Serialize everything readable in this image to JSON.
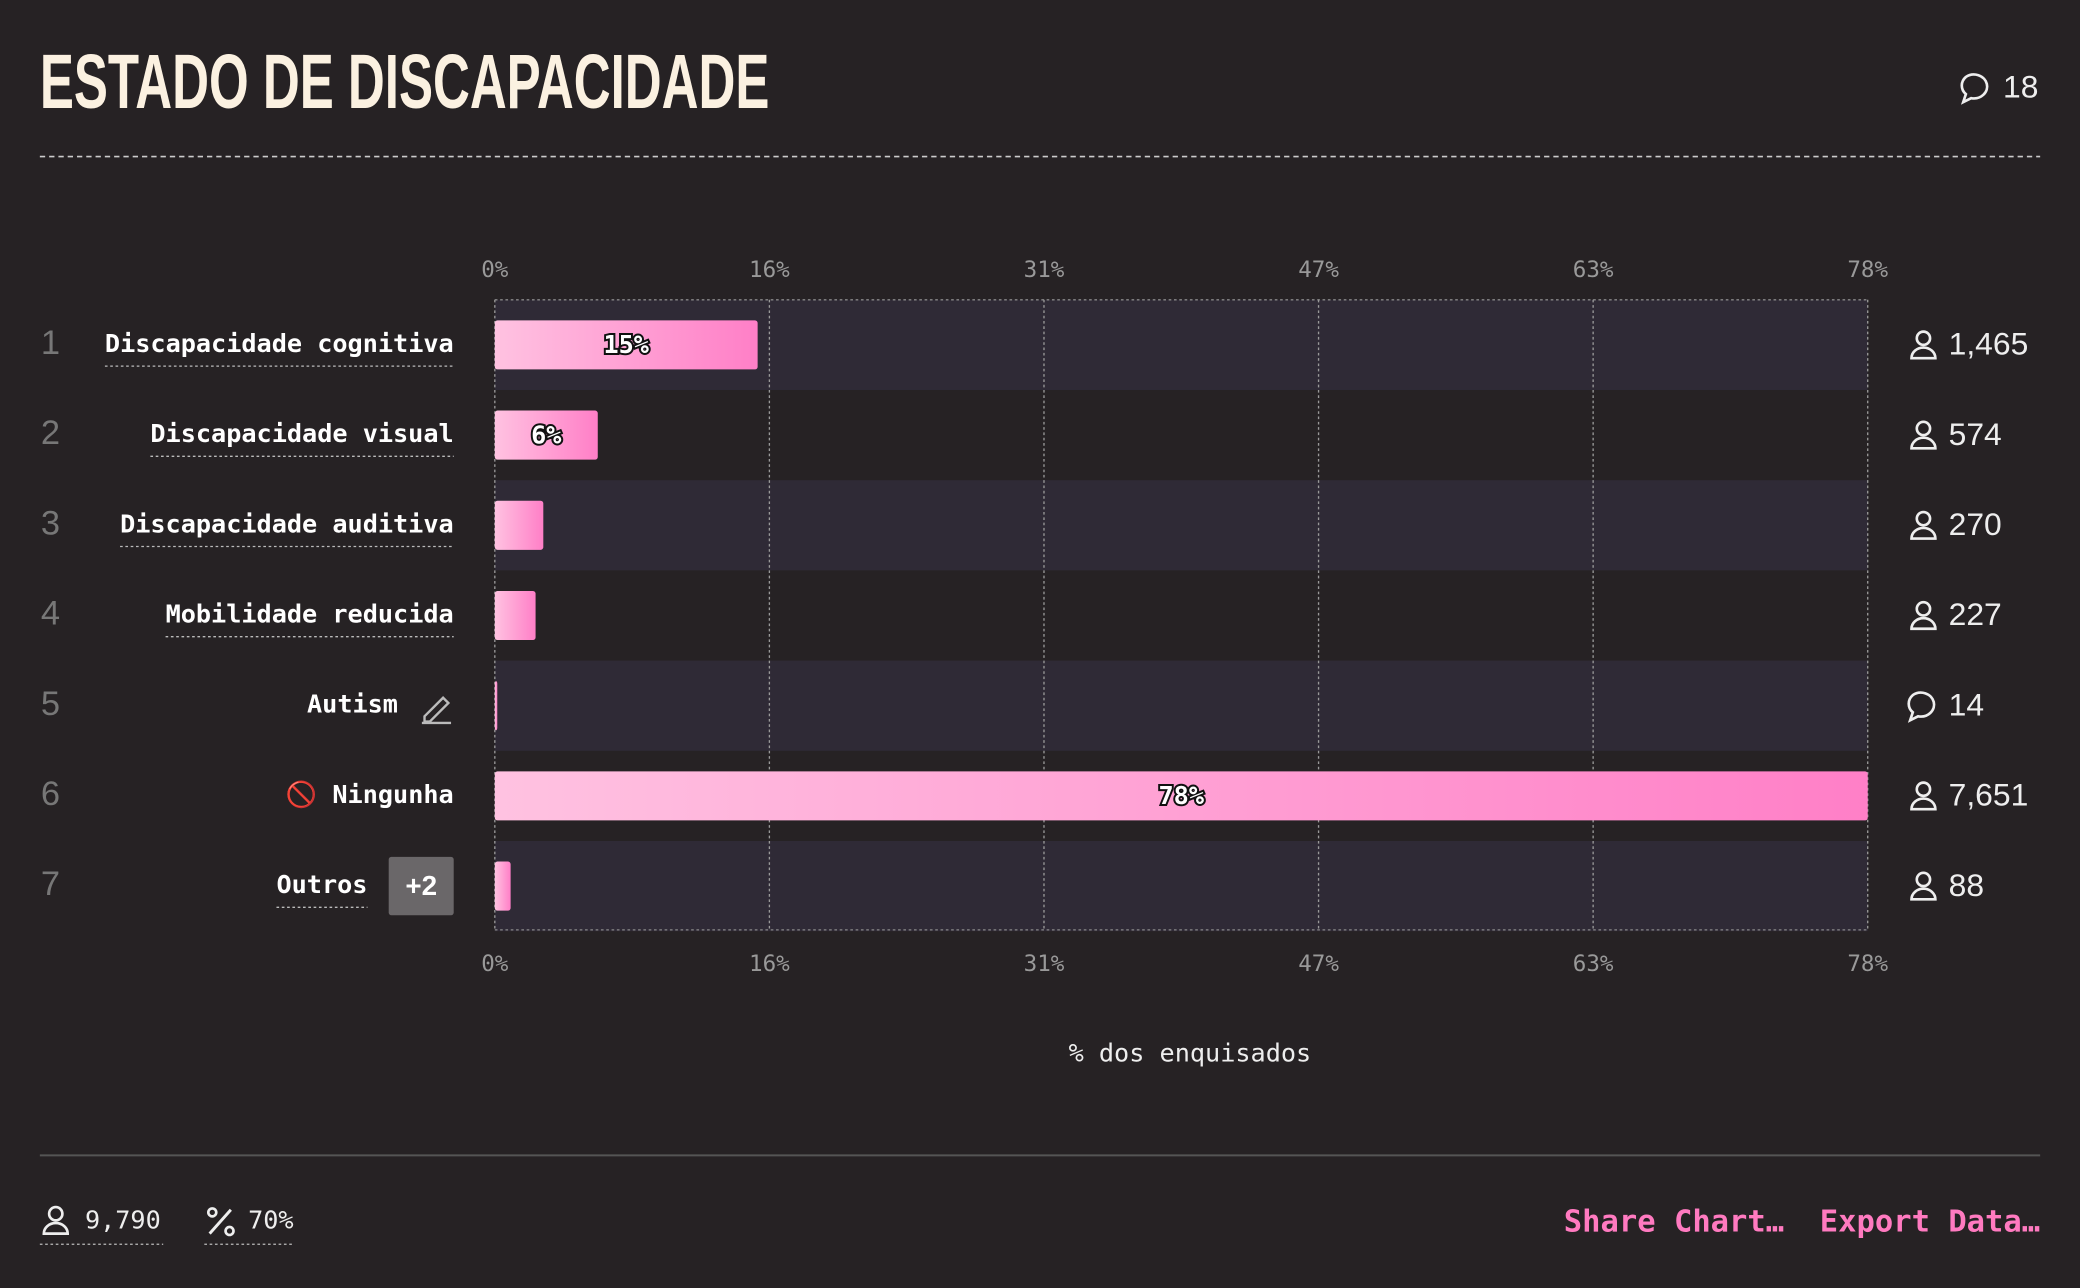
{
  "chart_data": {
    "type": "bar",
    "orientation": "horizontal",
    "title": "ESTADO DE DISCAPACIDADE",
    "comment_count": 18,
    "ranks": [
      1,
      2,
      3,
      4,
      5,
      6,
      7
    ],
    "categories": [
      "Discapacidade cognitiva",
      "Discapacidade visual",
      "Discapacidade auditiva",
      "Mobilidade reducida",
      "Autism",
      "🚫 Ningunha",
      "Outros"
    ],
    "category_icons": [
      null,
      null,
      null,
      null,
      "edit",
      null,
      null
    ],
    "category_badges": [
      null,
      null,
      null,
      null,
      null,
      null,
      "+2"
    ],
    "values": [
      14.96,
      5.86,
      2.76,
      2.32,
      0.14,
      78.15,
      0.9
    ],
    "value_labels": [
      "15%",
      "6%",
      null,
      null,
      null,
      "78%",
      null
    ],
    "counts": [
      "1,465",
      "574",
      "270",
      "227",
      "14",
      "7,651",
      "88"
    ],
    "count_icons": [
      "person",
      "person",
      "person",
      "person",
      "comment",
      "person",
      "person"
    ],
    "gradient": [
      "#ffc2e1",
      "#ff7fc7"
    ],
    "xlim": [
      0,
      78.15
    ],
    "xticks": [
      {
        "value": 0,
        "label": "0%"
      },
      {
        "value": 15.63,
        "label": "16%"
      },
      {
        "value": 31.26,
        "label": "31%"
      },
      {
        "value": 46.89,
        "label": "47%"
      },
      {
        "value": 62.52,
        "label": "63%"
      },
      {
        "value": 78.15,
        "label": "78%"
      }
    ],
    "xlabel": "% dos enquisados",
    "grid": true
  },
  "footer": {
    "respondents": "9,790",
    "response_rate": "70%",
    "share": "Share Chart…",
    "export": "Export Data…"
  }
}
